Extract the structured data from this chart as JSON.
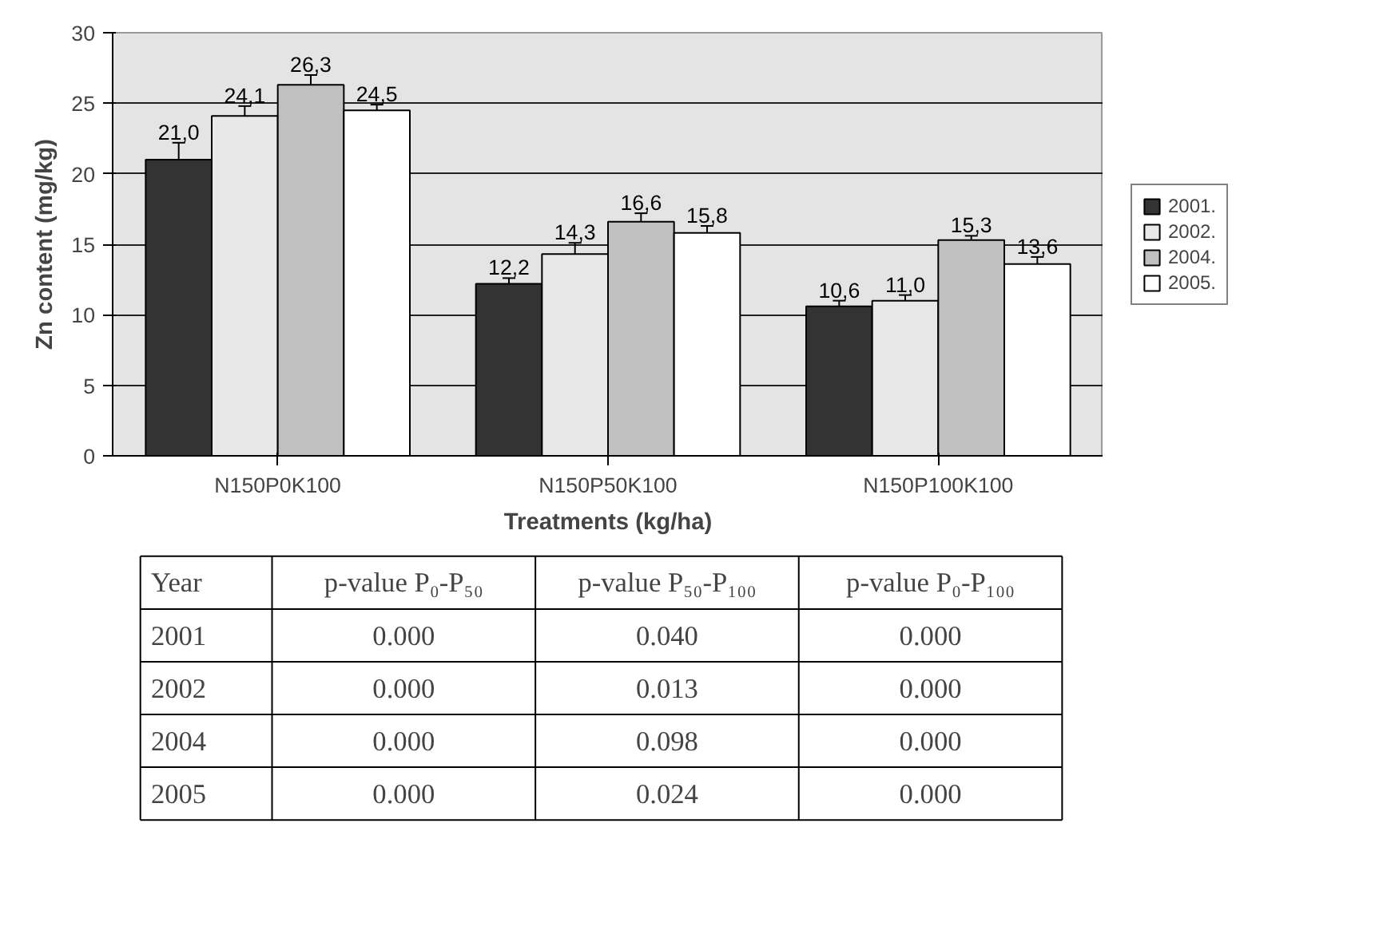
{
  "chart_data": {
    "type": "bar",
    "xlabel": "Treatments (kg/ha)",
    "ylabel": "Zn content (mg/kg)",
    "categories": [
      "N150P0K100",
      "N150P50K100",
      "N150P100K100"
    ],
    "series": [
      {
        "name": "2001.",
        "color": "#333333",
        "values": [
          21.0,
          12.2,
          10.6
        ],
        "value_labels": [
          "21,0",
          "12,2",
          "10,6"
        ],
        "errors": [
          1.2,
          0.4,
          0.4
        ]
      },
      {
        "name": "2002.",
        "color": "#e8e8e8",
        "values": [
          24.1,
          14.3,
          11.0
        ],
        "value_labels": [
          "24,1",
          "14,3",
          "11,0"
        ],
        "errors": [
          0.7,
          0.8,
          0.4
        ]
      },
      {
        "name": "2004.",
        "color": "#c0c0c0",
        "values": [
          26.3,
          16.6,
          15.3
        ],
        "value_labels": [
          "26,3",
          "16,6",
          "15,3"
        ],
        "errors": [
          0.7,
          0.6,
          0.3
        ]
      },
      {
        "name": "2005.",
        "color": "#ffffff",
        "values": [
          24.5,
          15.8,
          13.6
        ],
        "value_labels": [
          "24,5",
          "15,8",
          "13,6"
        ],
        "errors": [
          0.4,
          0.5,
          0.5
        ]
      }
    ],
    "ylim": [
      0,
      30
    ],
    "yticks": [
      0,
      5,
      10,
      15,
      20,
      25,
      30
    ],
    "grid": "y",
    "legend": "right",
    "annotations": [
      "Year",
      "p-value P₀-P₅₀",
      "p-value P₅₀-P₁₀₀",
      "p-value P₀-P₁₀₀",
      "2001",
      "0.000",
      "0.040",
      "0.000",
      "2002",
      "0.000",
      "0.013",
      "0.000",
      "2004",
      "0.000",
      "0.098",
      "0.000",
      "2005",
      "0.000",
      "0.024",
      "0.000"
    ]
  }
}
